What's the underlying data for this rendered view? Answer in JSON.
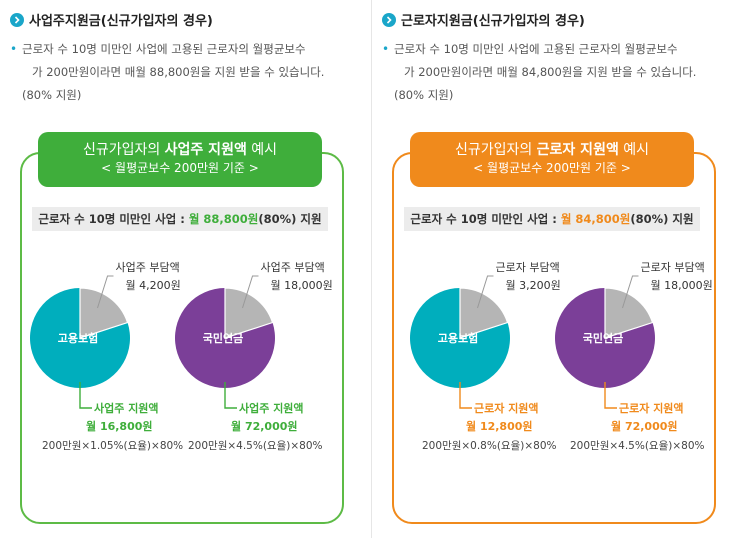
{
  "left": {
    "heading": "사업주지원금(신규가입자의 경우)",
    "desc_line1": "근로자 수 10명 미만인 사업에 고용된 근로자의 월평균보수",
    "desc_line2": "가 200만원이라면 매월 88,800원을 지원 받을 수 있습니다.",
    "desc_line3": "(80% 지원)",
    "banner_pre": "신규가입자의 ",
    "banner_hl": "사업주 지원액",
    "banner_post": " 예시",
    "banner_sub": "< 월평균보수 200만원 기준 >",
    "sum_pre": "근로자 수 10명 미만인 사업 : ",
    "sum_amt": "월 88,800원",
    "sum_post": "(80%) 지원",
    "pie1": {
      "center": "고용보험",
      "top_label1": "사업주 부담액",
      "top_label2": "월 4,200원",
      "bottom_label1": "사업주 지원액",
      "bottom_label2": "월 16,800원",
      "formula": "200만원×1.05%(요율)×80%",
      "share": 0.2
    },
    "pie2": {
      "center": "국민연금",
      "top_label1": "사업주 부담액",
      "top_label2": "월 18,000원",
      "bottom_label1": "사업주 지원액",
      "bottom_label2": "월 72,000원",
      "formula": "200만원×4.5%(요율)×80%",
      "share": 0.2
    }
  },
  "right": {
    "heading": "근로자지원금(신규가입자의 경우)",
    "desc_line1": "근로자 수 10명 미만인 사업에 고용된 근로자의 월평균보수",
    "desc_line2": "가 200만원이라면 매월 84,800원을 지원 받을 수 있습니다.",
    "desc_line3": "(80% 지원)",
    "banner_pre": "신규가입자의 ",
    "banner_hl": "근로자 지원액",
    "banner_post": " 예시",
    "banner_sub": "< 월평균보수 200만원 기준 >",
    "sum_pre": "근로자 수 10명 미만인 사업 : ",
    "sum_amt": "월 84,800원",
    "sum_post": "(80%) 지원",
    "pie1": {
      "center": "고용보험",
      "top_label1": "근로자 부담액",
      "top_label2": "월 3,200원",
      "bottom_label1": "근로자 지원액",
      "bottom_label2": "월 12,800원",
      "formula": "200만원×0.8%(요율)×80%",
      "share": 0.2
    },
    "pie2": {
      "center": "국민연금",
      "top_label1": "근로자 부담액",
      "top_label2": "월 18,000원",
      "bottom_label1": "근로자 지원액",
      "bottom_label2": "월 72,000원",
      "formula": "200만원×4.5%(요율)×80%",
      "share": 0.2
    }
  },
  "colors": {
    "teal": "#00aebd",
    "purple": "#7b3f98",
    "gray": "#b5b5b5",
    "green": "#3fae3b",
    "orange": "#f08a1c"
  }
}
